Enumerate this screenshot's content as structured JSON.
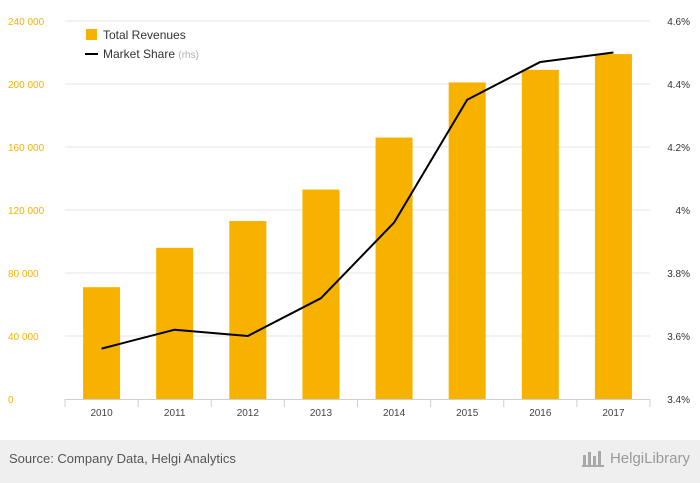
{
  "chart_data": {
    "type": "bar",
    "categories": [
      "2010",
      "2011",
      "2012",
      "2013",
      "2014",
      "2015",
      "2016",
      "2017"
    ],
    "series": [
      {
        "name": "Total Revenues",
        "type": "bar",
        "axis": "left",
        "color": "#f7b200",
        "values": [
          71000,
          96000,
          113000,
          133000,
          166000,
          201000,
          209000,
          219000
        ]
      },
      {
        "name": "Market Share",
        "type": "line",
        "axis": "right",
        "color": "#000000",
        "values": [
          3.56,
          3.62,
          3.6,
          3.72,
          3.96,
          4.35,
          4.47,
          4.5
        ]
      }
    ],
    "legend_suffix": "(rhs)",
    "legend_position": "top-left",
    "left_axis": {
      "ylim": [
        0,
        240000
      ],
      "ticks": [
        0,
        40000,
        80000,
        120000,
        160000,
        200000,
        240000
      ],
      "tick_labels": [
        "0",
        "40 000",
        "80 000",
        "120 000",
        "160 000",
        "200 000",
        "240 000"
      ],
      "label_color": "#f7b200"
    },
    "right_axis": {
      "ylim": [
        3.4,
        4.6
      ],
      "ticks": [
        3.4,
        3.6,
        3.8,
        4.0,
        4.2,
        4.4,
        4.6
      ],
      "tick_labels": [
        "3.4%",
        "3.6%",
        "3.8%",
        "4%",
        "4.2%",
        "4.4%",
        "4.6%"
      ],
      "label_color": "#333333"
    },
    "grid": true
  },
  "footer": {
    "source": "Source: Company Data, Helgi Analytics",
    "brand": "HelgiLibrary"
  }
}
